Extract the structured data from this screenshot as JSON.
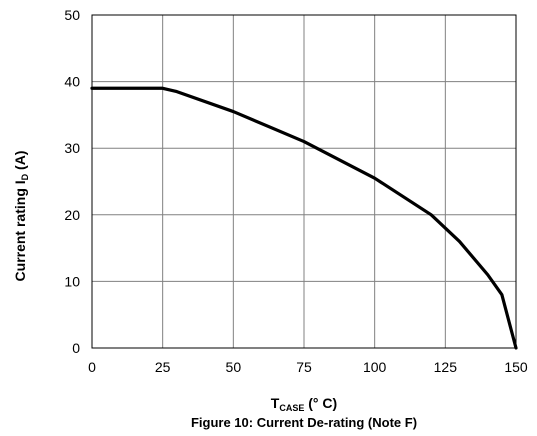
{
  "chart_data": {
    "type": "line",
    "x": [
      0,
      25,
      30,
      50,
      75,
      100,
      120,
      130,
      140,
      145,
      150
    ],
    "series": [
      {
        "values": [
          39,
          39,
          38.5,
          35.5,
          31,
          25.5,
          20,
          16,
          11,
          8,
          0
        ]
      }
    ],
    "xlim": [
      0,
      150
    ],
    "ylim": [
      0,
      50
    ],
    "x_ticks": [
      0,
      25,
      50,
      75,
      100,
      125,
      150
    ],
    "y_ticks": [
      0,
      10,
      20,
      30,
      40,
      50
    ],
    "grid": true,
    "xlabel": {
      "main": "T",
      "sub": "CASE",
      "suffix": " (° C)"
    },
    "ylabel": {
      "main": "Current rating I",
      "sub": "D",
      "suffix": " (A)"
    },
    "caption": "Figure 10: Current De-rating (Note F)",
    "line_color": "#000000",
    "grid_color": "#808080"
  }
}
